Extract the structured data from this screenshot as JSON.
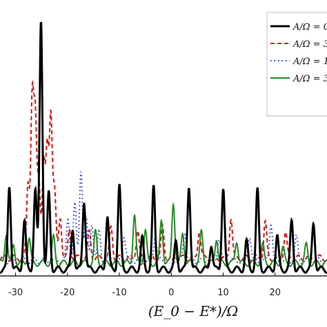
{
  "chart_data": {
    "type": "line",
    "title": "",
    "xlabel": "(E_0 − E*)/Ω",
    "ylabel": "",
    "xlim": [
      -33,
      30
    ],
    "ylim": [
      0,
      1
    ],
    "x_ticks": [
      -30,
      -20,
      -10,
      0,
      10,
      20
    ],
    "x_tick_labels": [
      "-30",
      "-20",
      "-10",
      "0",
      "10",
      "20"
    ],
    "legend_position": "top-right",
    "grid": false,
    "series": [
      {
        "name": "A/Ω = 0",
        "color": "#000000",
        "style": "solid",
        "width": 3,
        "baseline": 0.025,
        "peaks": [
          {
            "x": -31.2,
            "h": 0.33
          },
          {
            "x": -28.3,
            "h": 0.19
          },
          {
            "x": -26.2,
            "h": 0.31
          },
          {
            "x": -25.1,
            "h": 0.98
          },
          {
            "x": -23.6,
            "h": 0.3
          },
          {
            "x": -19.0,
            "h": 0.16
          },
          {
            "x": -16.8,
            "h": 0.27
          },
          {
            "x": -12.3,
            "h": 0.21
          },
          {
            "x": -10.0,
            "h": 0.33
          },
          {
            "x": -5.6,
            "h": 0.12
          },
          {
            "x": -3.4,
            "h": 0.32
          },
          {
            "x": 0.9,
            "h": 0.11
          },
          {
            "x": 3.4,
            "h": 0.33
          },
          {
            "x": 7.7,
            "h": 0.1
          },
          {
            "x": 10.0,
            "h": 0.32
          },
          {
            "x": 14.5,
            "h": 0.11
          },
          {
            "x": 16.6,
            "h": 0.31
          },
          {
            "x": 20.4,
            "h": 0.13
          },
          {
            "x": 23.2,
            "h": 0.19
          },
          {
            "x": 27.4,
            "h": 0.18
          }
        ]
      },
      {
        "name": "A/Ω = 3",
        "color": "#dd1111",
        "style": "dashed",
        "width": 2,
        "baseline": 0.07,
        "peaks": [
          {
            "x": -27.6,
            "h": 0.29
          },
          {
            "x": -26.8,
            "h": 0.62
          },
          {
            "x": -26.2,
            "h": 0.52
          },
          {
            "x": -25.5,
            "h": 0.3
          },
          {
            "x": -24.6,
            "h": 0.37
          },
          {
            "x": -23.9,
            "h": 0.42
          },
          {
            "x": -23.2,
            "h": 0.56
          },
          {
            "x": -22.5,
            "h": 0.26
          },
          {
            "x": -21.4,
            "h": 0.16
          },
          {
            "x": -19.6,
            "h": 0.11
          },
          {
            "x": -15.8,
            "h": 0.1
          },
          {
            "x": -11.6,
            "h": 0.12
          },
          {
            "x": -6.5,
            "h": 0.11
          },
          {
            "x": -1.7,
            "h": 0.12
          },
          {
            "x": 5.4,
            "h": 0.11
          },
          {
            "x": 11.5,
            "h": 0.16
          },
          {
            "x": 18.1,
            "h": 0.14
          },
          {
            "x": 22.0,
            "h": 0.1
          }
        ]
      },
      {
        "name": "A/Ω = 1",
        "color": "#1a2ee0",
        "style": "dotted",
        "width": 2,
        "baseline": 0.06,
        "peaks": [
          {
            "x": -19.9,
            "h": 0.16
          },
          {
            "x": -18.6,
            "h": 0.22
          },
          {
            "x": -17.4,
            "h": 0.36
          },
          {
            "x": -16.4,
            "h": 0.16
          },
          {
            "x": -15.3,
            "h": 0.15
          },
          {
            "x": -13.9,
            "h": 0.12
          },
          {
            "x": -9.1,
            "h": 0.1
          },
          {
            "x": -3.1,
            "h": 0.1
          },
          {
            "x": 2.6,
            "h": 0.11
          },
          {
            "x": 9.2,
            "h": 0.09
          },
          {
            "x": 15.1,
            "h": 0.1
          },
          {
            "x": 19.2,
            "h": 0.15
          },
          {
            "x": 24.1,
            "h": 0.09
          }
        ]
      },
      {
        "name": "A/Ω = 3",
        "color": "#238c23",
        "style": "solid",
        "width": 2,
        "baseline": 0.05,
        "peaks": [
          {
            "x": -31.8,
            "h": 0.12
          },
          {
            "x": -30.4,
            "h": 0.07
          },
          {
            "x": -27.4,
            "h": 0.1
          },
          {
            "x": -22.7,
            "h": 0.1
          },
          {
            "x": -14.6,
            "h": 0.12
          },
          {
            "x": -7.1,
            "h": 0.19
          },
          {
            "x": -5.0,
            "h": 0.13
          },
          {
            "x": -1.9,
            "h": 0.17
          },
          {
            "x": 0.4,
            "h": 0.24
          },
          {
            "x": 2.2,
            "h": 0.12
          },
          {
            "x": 5.8,
            "h": 0.12
          },
          {
            "x": 8.7,
            "h": 0.1
          },
          {
            "x": 12.6,
            "h": 0.09
          },
          {
            "x": 17.6,
            "h": 0.07
          },
          {
            "x": 21.5,
            "h": 0.06
          },
          {
            "x": 26.0,
            "h": 0.07
          }
        ]
      }
    ]
  }
}
